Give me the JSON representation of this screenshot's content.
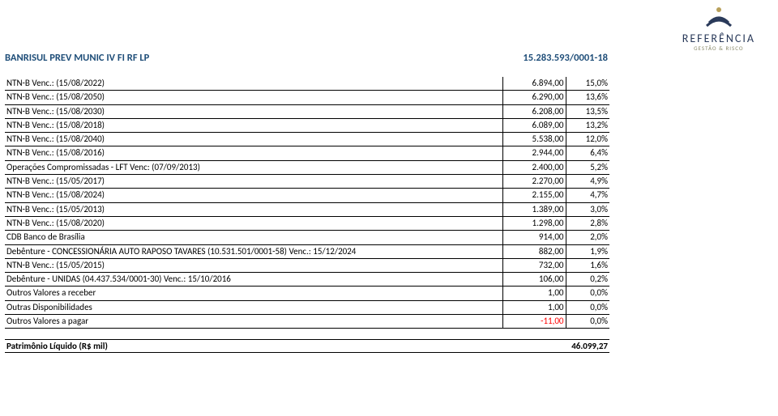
{
  "logo": {
    "brand": "REFERÊNCIA",
    "tagline": "GESTÃO & RISCO",
    "icon_color_top": "#2a3a5a",
    "icon_color_dot": "#b8a05a"
  },
  "header": {
    "title": "BANRISUL PREV MUNIC IV FI RF LP",
    "code": "15.283.593/0001-18",
    "color": "#1f4e79"
  },
  "rows": [
    {
      "desc": "NTN-B Venc.: (15/08/2022)",
      "val": "6.894,00",
      "pct": "15,0%"
    },
    {
      "desc": "NTN-B Venc.: (15/08/2050)",
      "val": "6.290,00",
      "pct": "13,6%"
    },
    {
      "desc": "NTN-B Venc.: (15/08/2030)",
      "val": "6.208,00",
      "pct": "13,5%"
    },
    {
      "desc": "NTN-B Venc.: (15/08/2018)",
      "val": "6.089,00",
      "pct": "13,2%"
    },
    {
      "desc": "NTN-B Venc.: (15/08/2040)",
      "val": "5.538,00",
      "pct": "12,0%"
    },
    {
      "desc": "NTN-B Venc.: (15/08/2016)",
      "val": "2.944,00",
      "pct": "6,4%"
    },
    {
      "desc": "Operações Compromissadas - LFT Venc: (07/09/2013)",
      "val": "2.400,00",
      "pct": "5,2%"
    },
    {
      "desc": "NTN-B Venc.: (15/05/2017)",
      "val": "2.270,00",
      "pct": "4,9%"
    },
    {
      "desc": "NTN-B Venc.: (15/08/2024)",
      "val": "2.155,00",
      "pct": "4,7%"
    },
    {
      "desc": "NTN-B Venc.: (15/05/2013)",
      "val": "1.389,00",
      "pct": "3,0%"
    },
    {
      "desc": "NTN-B Venc.: (15/08/2020)",
      "val": "1.298,00",
      "pct": "2,8%"
    },
    {
      "desc": "CDB Banco de Brasília",
      "val": "914,00",
      "pct": "2,0%"
    },
    {
      "desc": "Debênture - CONCESSIONÁRIA AUTO RAPOSO TAVARES (10.531.501/0001-58) Venc.: 15/12/2024",
      "val": "882,00",
      "pct": "1,9%"
    },
    {
      "desc": "NTN-B Venc.: (15/05/2015)",
      "val": "732,00",
      "pct": "1,6%"
    },
    {
      "desc": "Debênture - UNIDAS (04.437.534/0001-30) Venc.: 15/10/2016",
      "val": "106,00",
      "pct": "0,2%"
    },
    {
      "desc": "Outros Valores a receber",
      "val": "1,00",
      "pct": "0,0%"
    },
    {
      "desc": "Outras Disponibilidades",
      "val": "1,00",
      "pct": "0,0%"
    },
    {
      "desc": "Outros Valores a pagar",
      "val": "-11,00",
      "pct": "0,0%",
      "neg": true
    }
  ],
  "footer": {
    "label": "Patrimônio Líquido (R$ mil)",
    "value": "46.099,27"
  }
}
